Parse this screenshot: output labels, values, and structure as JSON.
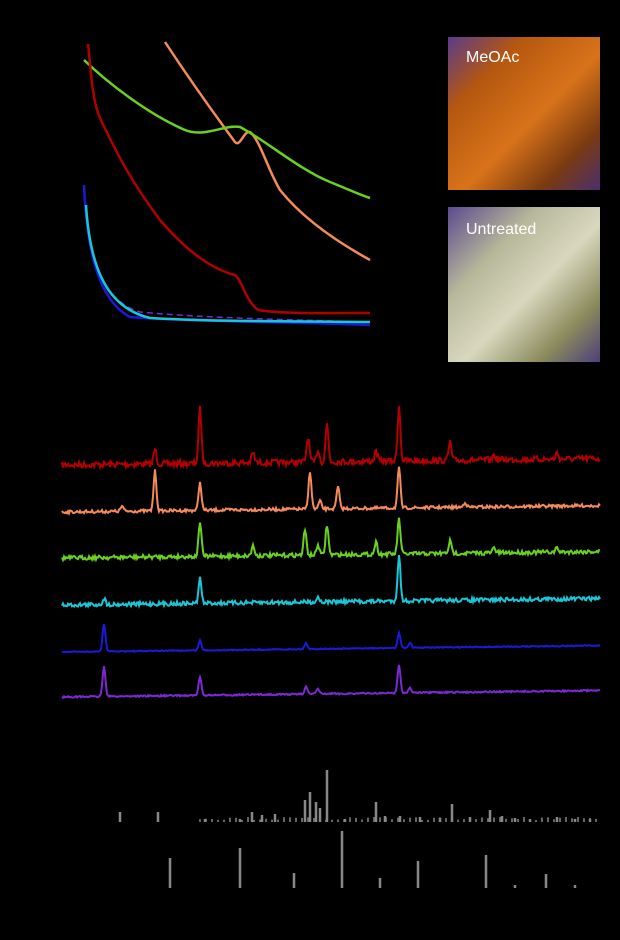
{
  "photos": [
    {
      "label": "MeOAc"
    },
    {
      "label": "Untreated"
    }
  ]
}
